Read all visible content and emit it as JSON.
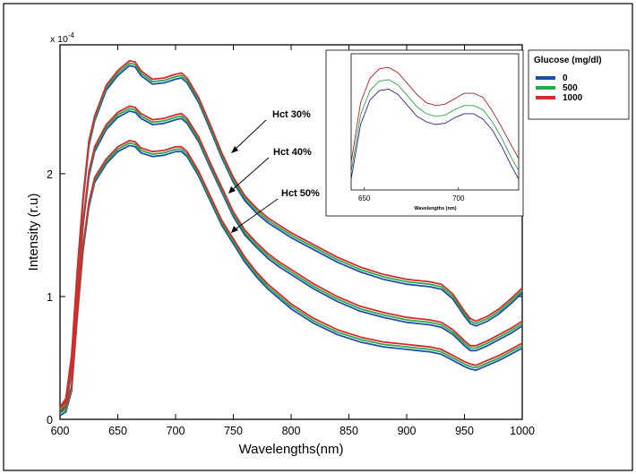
{
  "chart_data": [
    {
      "type": "line",
      "exponent_label": "x 10",
      "exponent_power": "-4",
      "xlabel": "Wavelengths(nm)",
      "ylabel": "Intensity (r.u)",
      "xlim": [
        600,
        1000
      ],
      "ylim": [
        0,
        3.05
      ],
      "x_ticks": [
        600,
        650,
        700,
        750,
        800,
        850,
        900,
        950,
        1000
      ],
      "y_ticks": [
        0,
        1,
        2
      ],
      "annotations": [
        "Hct 30%",
        "Hct 40%",
        "Hct 50%"
      ],
      "groups": [
        {
          "name": "Hct 30%",
          "x": [
            600,
            605,
            610,
            615,
            620,
            625,
            630,
            640,
            650,
            660,
            665,
            670,
            680,
            690,
            700,
            705,
            710,
            720,
            730,
            740,
            750,
            760,
            770,
            780,
            790,
            800,
            820,
            840,
            860,
            880,
            900,
            910,
            920,
            930,
            940,
            950,
            955,
            960,
            970,
            980,
            990,
            1000
          ],
          "y": [
            0.08,
            0.15,
            0.5,
            1.2,
            1.8,
            2.25,
            2.45,
            2.7,
            2.82,
            2.9,
            2.89,
            2.82,
            2.75,
            2.76,
            2.79,
            2.8,
            2.76,
            2.6,
            2.38,
            2.15,
            1.95,
            1.8,
            1.7,
            1.62,
            1.56,
            1.5,
            1.4,
            1.3,
            1.22,
            1.16,
            1.12,
            1.11,
            1.1,
            1.08,
            1.0,
            0.86,
            0.8,
            0.78,
            0.82,
            0.88,
            0.96,
            1.05
          ]
        },
        {
          "name": "Hct 40%",
          "x": [
            600,
            605,
            610,
            615,
            620,
            625,
            630,
            640,
            650,
            660,
            665,
            670,
            680,
            690,
            700,
            705,
            710,
            720,
            730,
            740,
            750,
            760,
            770,
            780,
            790,
            800,
            820,
            840,
            860,
            880,
            900,
            910,
            920,
            930,
            940,
            950,
            955,
            960,
            970,
            980,
            990,
            1000
          ],
          "y": [
            0.08,
            0.12,
            0.4,
            1.0,
            1.6,
            2.0,
            2.2,
            2.38,
            2.48,
            2.53,
            2.52,
            2.47,
            2.42,
            2.43,
            2.46,
            2.47,
            2.43,
            2.28,
            2.07,
            1.87,
            1.67,
            1.52,
            1.42,
            1.33,
            1.26,
            1.2,
            1.08,
            0.98,
            0.9,
            0.85,
            0.81,
            0.8,
            0.79,
            0.77,
            0.71,
            0.62,
            0.58,
            0.58,
            0.62,
            0.67,
            0.72,
            0.78
          ]
        },
        {
          "name": "Hct 50%",
          "x": [
            600,
            605,
            610,
            615,
            620,
            625,
            630,
            640,
            650,
            660,
            665,
            670,
            680,
            690,
            700,
            705,
            710,
            720,
            730,
            740,
            750,
            760,
            770,
            780,
            790,
            800,
            820,
            840,
            860,
            880,
            900,
            910,
            920,
            930,
            940,
            950,
            955,
            960,
            970,
            980,
            990,
            1000
          ],
          "y": [
            0.05,
            0.08,
            0.25,
            0.85,
            1.4,
            1.75,
            1.95,
            2.1,
            2.2,
            2.25,
            2.24,
            2.19,
            2.16,
            2.17,
            2.2,
            2.2,
            2.16,
            2.0,
            1.8,
            1.6,
            1.45,
            1.3,
            1.18,
            1.08,
            1.0,
            0.92,
            0.8,
            0.71,
            0.65,
            0.61,
            0.59,
            0.58,
            0.57,
            0.55,
            0.5,
            0.45,
            0.43,
            0.42,
            0.46,
            0.5,
            0.55,
            0.6
          ]
        }
      ],
      "series": [
        {
          "name": "0",
          "color": "#1f4fa8",
          "offset": -0.02
        },
        {
          "name": "500",
          "color": "#2aa84a",
          "offset": 0.0
        },
        {
          "name": "1000",
          "color": "#d42a2a",
          "offset": 0.02
        }
      ]
    },
    {
      "type": "line",
      "inset": true,
      "xlabel": "Wavelengths (nm)",
      "xlim": [
        643,
        732
      ],
      "ylim": [
        0,
        1
      ],
      "x_ticks": [
        650,
        700
      ],
      "series": [
        {
          "name": "0",
          "color": "#23238c",
          "x": [
            643,
            648,
            653,
            658,
            663,
            668,
            673,
            678,
            683,
            688,
            693,
            698,
            703,
            708,
            713,
            718,
            723,
            728,
            732
          ],
          "y": [
            0.08,
            0.48,
            0.66,
            0.73,
            0.74,
            0.7,
            0.62,
            0.54,
            0.5,
            0.48,
            0.49,
            0.53,
            0.56,
            0.56,
            0.52,
            0.44,
            0.32,
            0.18,
            0.08
          ]
        },
        {
          "name": "500",
          "color": "#2aa84a",
          "x": [
            643,
            648,
            653,
            658,
            663,
            668,
            673,
            678,
            683,
            688,
            693,
            698,
            703,
            708,
            713,
            718,
            723,
            728,
            732
          ],
          "y": [
            0.13,
            0.55,
            0.73,
            0.8,
            0.81,
            0.77,
            0.69,
            0.61,
            0.56,
            0.54,
            0.55,
            0.59,
            0.62,
            0.62,
            0.59,
            0.5,
            0.38,
            0.24,
            0.14
          ]
        },
        {
          "name": "1000",
          "color": "#b02020",
          "x": [
            643,
            648,
            653,
            658,
            663,
            668,
            673,
            678,
            683,
            688,
            693,
            698,
            703,
            708,
            713,
            718,
            723,
            728,
            732
          ],
          "y": [
            0.2,
            0.64,
            0.82,
            0.89,
            0.9,
            0.86,
            0.78,
            0.7,
            0.64,
            0.62,
            0.63,
            0.67,
            0.71,
            0.71,
            0.68,
            0.58,
            0.46,
            0.33,
            0.23
          ]
        }
      ]
    }
  ],
  "legend": {
    "title": "Glucose (mg/dl)",
    "items": [
      {
        "label": "0",
        "color": "#1f4fa8"
      },
      {
        "label": "500",
        "color": "#2aa84a"
      },
      {
        "label": "1000",
        "color": "#d42a2a"
      }
    ]
  }
}
